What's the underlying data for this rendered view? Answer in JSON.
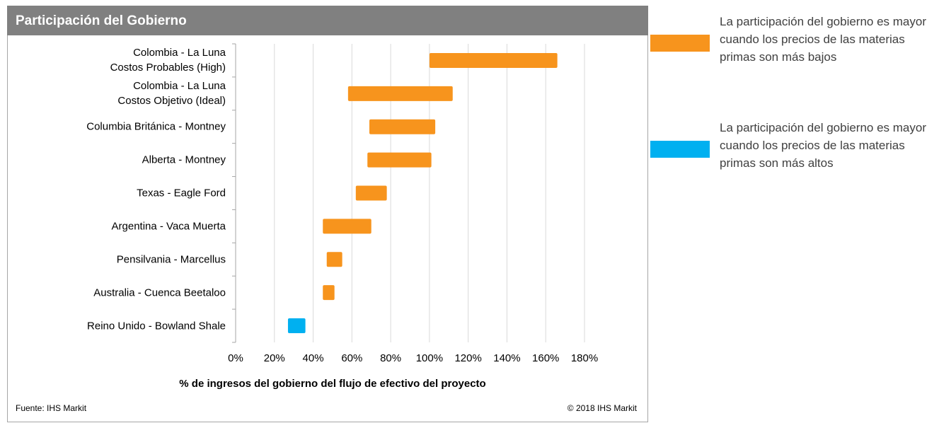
{
  "chart_data": {
    "type": "floating-bar",
    "title": "Participación del Gobierno",
    "categories": [
      "Colombia - La Luna\nCostos Probables (High)",
      "Colombia - La Luna\nCostos Objetivo (Ideal)",
      "Columbia Británica  - Montney",
      "Alberta - Montney",
      "Texas - Eagle Ford",
      "Argentina - Vaca Muerta",
      "Pensilvania - Marcellus",
      "Australia - Cuenca Beetaloo",
      "Reino Unido - Bowland Shale"
    ],
    "low": [
      100,
      58,
      69,
      68,
      62,
      45,
      47,
      45,
      27
    ],
    "high": [
      166,
      112,
      103,
      101,
      78,
      70,
      55,
      51,
      36
    ],
    "colors": [
      "#f7941d",
      "#f7941d",
      "#f7941d",
      "#f7941d",
      "#f7941d",
      "#f7941d",
      "#f7941d",
      "#f7941d",
      "#00b0f0"
    ],
    "xlim": [
      0,
      180
    ],
    "xticks": [
      {
        "value": 0,
        "label": "0%"
      },
      {
        "value": 20,
        "label": "20%"
      },
      {
        "value": 40,
        "label": "40%"
      },
      {
        "value": 60,
        "label": "60%"
      },
      {
        "value": 80,
        "label": "80%"
      },
      {
        "value": 100,
        "label": "100%"
      },
      {
        "value": 120,
        "label": "120%"
      },
      {
        "value": 140,
        "label": "140%"
      },
      {
        "value": 160,
        "label": "160%"
      },
      {
        "value": 180,
        "label": "180%"
      }
    ],
    "grid": true,
    "xlabel": "% de ingresos del gobierno del flujo de efectivo del proyecto",
    "source": "Fuente: IHS Markit",
    "copyright": "© 2018 IHS Markit",
    "legend": [
      {
        "color": "#f7941d",
        "label": "La participación del gobierno es mayor cuando los precios de las materias primas son más bajos"
      },
      {
        "color": "#00b0f0",
        "label": "La participación del gobierno es mayor cuando los precios de las materias primas son más altos"
      }
    ]
  }
}
